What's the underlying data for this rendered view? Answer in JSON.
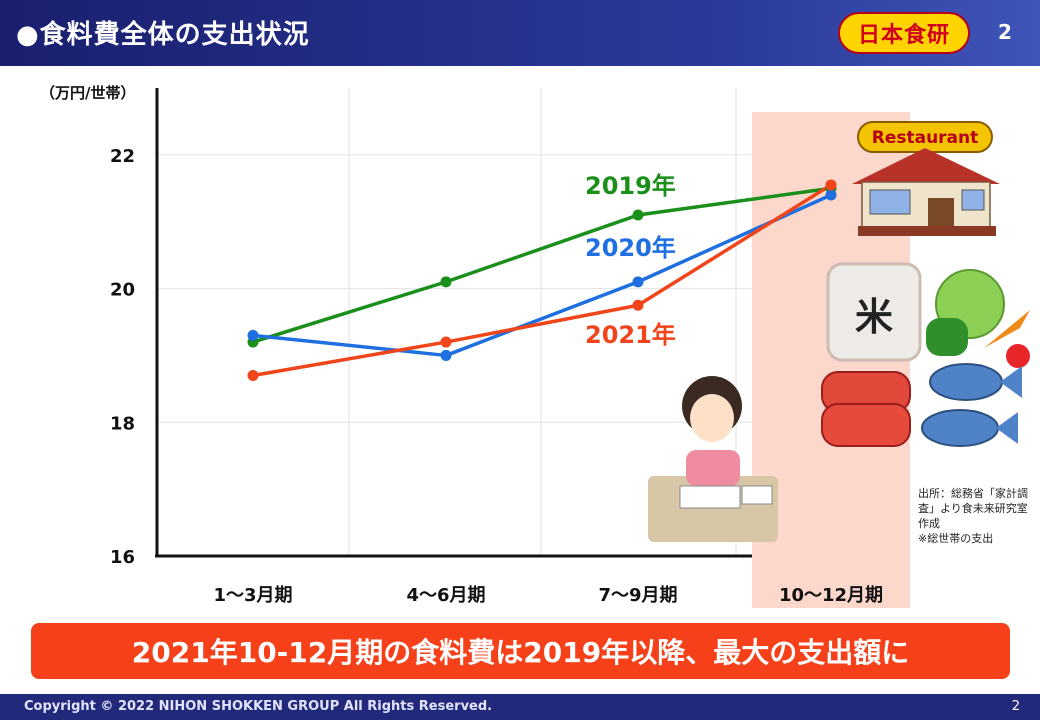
{
  "header": {
    "title": "●食料費全体の支出状況",
    "logo_text": "日本食研",
    "page_number": "2"
  },
  "chart_data": {
    "type": "line",
    "title": "",
    "ylabel": "（万円/世帯）",
    "xlabel": "",
    "categories": [
      "1〜3月期",
      "4〜6月期",
      "7〜9月期",
      "10〜12月期"
    ],
    "ylim": [
      16,
      23
    ],
    "yticks": [
      16,
      18,
      20,
      22
    ],
    "grid": true,
    "highlight_category": "10〜12月期",
    "series": [
      {
        "name": "2019年",
        "color": "#1a8f1a",
        "values": [
          19.2,
          20.1,
          21.1,
          21.5
        ]
      },
      {
        "name": "2020年",
        "color": "#1f6fe0",
        "values": [
          19.3,
          19.0,
          20.1,
          21.4
        ]
      },
      {
        "name": "2021年",
        "color": "#f0441a",
        "values": [
          18.7,
          19.2,
          19.75,
          21.55
        ]
      }
    ]
  },
  "illustrations": {
    "restaurant_sign": "Restaurant",
    "rice_bag_char": "米"
  },
  "source_note": "出所：総務省「家計調査」より食未来研究室作成\n※総世帯の支出",
  "banner": {
    "text": "2021年10-12月期の食料費は2019年以降、最大の支出額に",
    "color": "#f5401a"
  },
  "footer": {
    "copyright": "Copyright © 2022 NIHON SHOKKEN GROUP All Rights Reserved.",
    "page_number": "2"
  }
}
